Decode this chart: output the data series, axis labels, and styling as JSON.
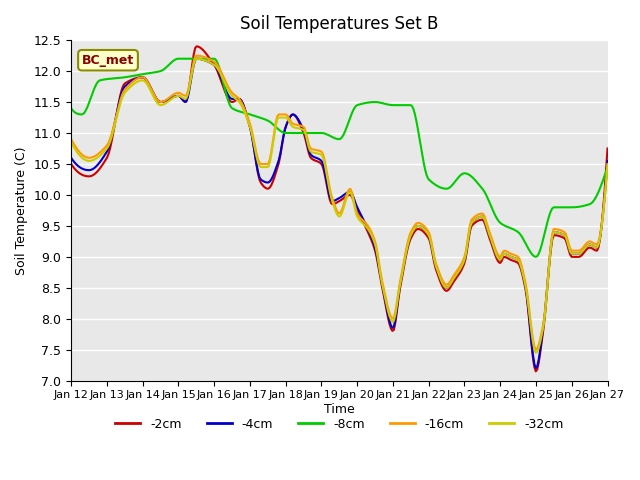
{
  "title": "Soil Temperatures Set B",
  "xlabel": "Time",
  "ylabel": "Soil Temperature (C)",
  "annotation_text": "BC_met",
  "ylim": [
    7.0,
    12.5
  ],
  "xlim": [
    0,
    15
  ],
  "series_labels": [
    "-2cm",
    "-4cm",
    "-8cm",
    "-16cm",
    "-32cm"
  ],
  "series_colors": [
    "#cc0000",
    "#0000cc",
    "#00cc00",
    "#ff9900",
    "#cccc00"
  ],
  "line_width": 1.5,
  "background_color": "#e8e8e8",
  "xtick_positions": [
    0,
    1,
    2,
    3,
    4,
    5,
    6,
    7,
    8,
    9,
    10,
    11,
    12,
    13,
    14,
    15
  ],
  "xtick_labels": [
    "Jan 12",
    "Jan 13",
    "Jan 14",
    "Jan 15",
    "Jan 16",
    "Jan 17",
    "Jan 18",
    "Jan 19",
    "Jan 20",
    "Jan 21",
    "Jan 22",
    "Jan 23",
    "Jan 24",
    "Jan 25",
    "Jan 26",
    "Jan 27"
  ],
  "yticks": [
    7.0,
    7.5,
    8.0,
    8.5,
    9.0,
    9.5,
    10.0,
    10.5,
    11.0,
    11.5,
    12.0,
    12.5
  ]
}
